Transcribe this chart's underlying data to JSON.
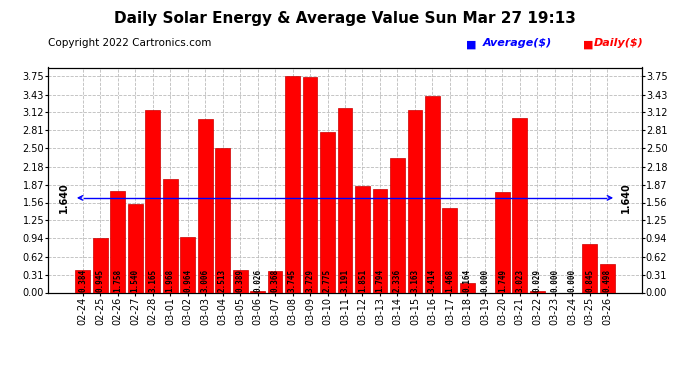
{
  "title": "Daily Solar Energy & Average Value Sun Mar 27 19:13",
  "copyright": "Copyright 2022 Cartronics.com",
  "categories": [
    "02-24",
    "02-25",
    "02-26",
    "02-27",
    "02-28",
    "03-01",
    "03-02",
    "03-03",
    "03-04",
    "03-05",
    "03-06",
    "03-07",
    "03-08",
    "03-09",
    "03-10",
    "03-11",
    "03-12",
    "03-13",
    "03-14",
    "03-15",
    "03-16",
    "03-17",
    "03-18",
    "03-19",
    "03-20",
    "03-21",
    "03-22",
    "03-23",
    "03-24",
    "03-25",
    "03-26"
  ],
  "values": [
    0.384,
    0.945,
    1.758,
    1.54,
    3.165,
    1.968,
    0.964,
    3.006,
    2.513,
    0.389,
    0.026,
    0.368,
    3.745,
    3.729,
    2.775,
    3.191,
    1.851,
    1.794,
    2.336,
    3.163,
    3.414,
    1.468,
    0.164,
    0.0,
    1.749,
    3.023,
    0.029,
    0.0,
    0.0,
    0.845,
    0.498
  ],
  "average_value": 1.64,
  "average_label": "1.640",
  "bar_color": "#ff0000",
  "bar_edge_color": "#cc0000",
  "average_line_color": "#0000ff",
  "background_color": "#ffffff",
  "grid_color": "#bbbbbb",
  "title_color": "#000000",
  "ylim": [
    0.0,
    3.9
  ],
  "yticks": [
    0.0,
    0.31,
    0.62,
    0.94,
    1.25,
    1.56,
    1.87,
    2.18,
    2.5,
    2.81,
    3.12,
    3.43,
    3.75
  ],
  "legend_avg_label": "Average($)",
  "legend_daily_label": "Daily($)",
  "legend_avg_color": "#0000ff",
  "legend_daily_color": "#ff0000",
  "title_fontsize": 11,
  "tick_fontsize": 7,
  "value_fontsize": 5.5,
  "copyright_fontsize": 7.5
}
